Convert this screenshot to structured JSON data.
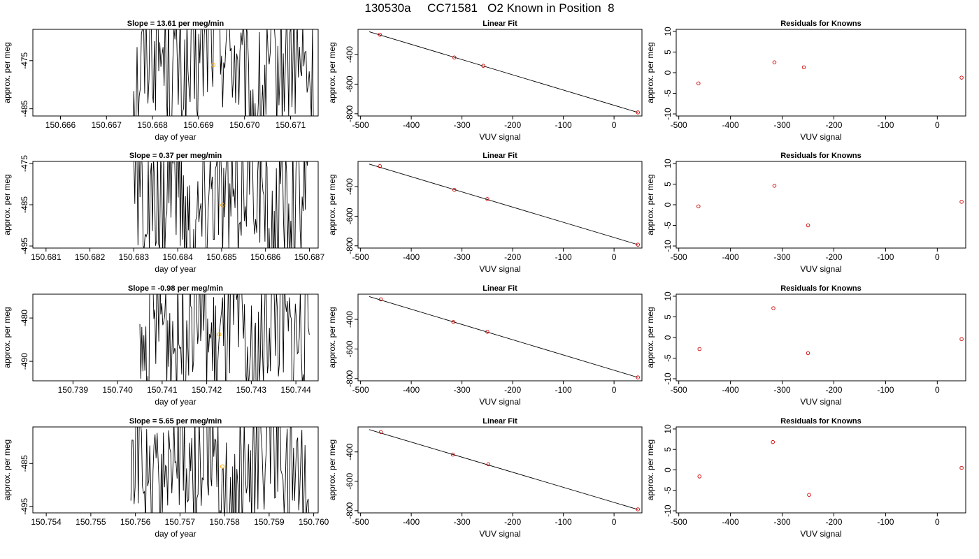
{
  "page_title": "130530a     CC71581   O2 Known in Position  8",
  "colors": {
    "trace": "#000000",
    "highlight": "#ffa500",
    "points": "#d00000",
    "box": "#000000"
  },
  "chart_data": [
    {
      "type": "line",
      "row": 1,
      "panel": "time-series",
      "title": "Slope =  13.61  per meg/min",
      "xlabel": "day of year",
      "ylabel": "approx. per meg",
      "xticks": [
        "150.666",
        "150.667",
        "150.668",
        "150.669",
        "150.670",
        "150.671"
      ],
      "yticks": [
        "-475",
        "-485"
      ],
      "xlim": [
        150.6654,
        150.6716
      ],
      "ylim": [
        -486.5,
        -468.5
      ],
      "trace_start": 150.6675,
      "trace_end": 150.6715,
      "series": [
        {
          "values": [
            -484.0,
            -470.0,
            -476.0,
            -480.0,
            -469.0,
            -472.0,
            -486.0,
            -478.0,
            -474.0,
            -481.0
          ]
        }
      ],
      "highlight": {
        "x": 150.66932,
        "y": -475.9
      }
    },
    {
      "type": "scatter",
      "row": 1,
      "panel": "fit",
      "title": "Linear Fit",
      "xlabel": "VUV signal",
      "ylabel": "approx. per meg",
      "xticks": [
        "-500",
        "-400",
        "-300",
        "-200",
        "-100",
        "0"
      ],
      "yticks": [
        "-400",
        "-600",
        "-800"
      ],
      "xlim": [
        -505,
        55
      ],
      "ylim": [
        -815,
        -230
      ],
      "x": [
        -462,
        -315,
        -258,
        47
      ],
      "y": [
        -266,
        -420,
        -476,
        -791
      ],
      "fit_line": [
        [
          -483,
          -246
        ],
        [
          47,
          -791
        ]
      ]
    },
    {
      "type": "scatter",
      "row": 1,
      "panel": "residuals",
      "title": "Residuals for Knowns",
      "xlabel": "VUV signal",
      "ylabel": "approx. per meg",
      "xticks": [
        "-500",
        "-400",
        "-300",
        "-200",
        "-100",
        "0"
      ],
      "yticks": [
        "10",
        "5",
        "0",
        "-5",
        "-10"
      ],
      "xlim": [
        -505,
        55
      ],
      "ylim": [
        -10.5,
        10.5
      ],
      "x": [
        -462,
        -315,
        -258,
        47
      ],
      "y": [
        -2.6,
        2.5,
        1.3,
        -1.2
      ]
    },
    {
      "type": "line",
      "row": 2,
      "panel": "time-series",
      "title": "Slope =  0.37  per meg/min",
      "xlabel": "day of year",
      "ylabel": "approx. per meg",
      "xticks": [
        "150.681",
        "150.682",
        "150.683",
        "150.684",
        "150.685",
        "150.686",
        "150.687"
      ],
      "yticks": [
        "-475",
        "-485",
        "-495"
      ],
      "xlim": [
        150.6807,
        150.6872
      ],
      "ylim": [
        -495.5,
        -474.5
      ],
      "trace_start": 150.683,
      "trace_end": 150.687,
      "series": [
        {
          "values": [
            -478.0,
            -490.0,
            -476.0,
            -494.0,
            -480.0,
            -487.0,
            -475.0,
            -492.0,
            -483.0,
            -478.0
          ]
        }
      ],
      "highlight": {
        "x": 150.68502,
        "y": -485.1
      }
    },
    {
      "type": "scatter",
      "row": 2,
      "panel": "fit",
      "title": "Linear Fit",
      "xlabel": "VUV signal",
      "ylabel": "approx. per meg",
      "xticks": [
        "-500",
        "-400",
        "-300",
        "-200",
        "-100",
        "0"
      ],
      "yticks": [
        "-400",
        "-600",
        "-800"
      ],
      "xlim": [
        -505,
        55
      ],
      "ylim": [
        -815,
        -230
      ],
      "x": [
        -462,
        -315,
        -250,
        47
      ],
      "y": [
        -262,
        -422,
        -484,
        -792
      ],
      "fit_line": [
        [
          -483,
          -248
        ],
        [
          47,
          -792
        ]
      ]
    },
    {
      "type": "scatter",
      "row": 2,
      "panel": "residuals",
      "title": "Residuals for Knowns",
      "xlabel": "VUV signal",
      "ylabel": "approx. per meg",
      "xticks": [
        "-500",
        "-400",
        "-300",
        "-200",
        "-100",
        "0"
      ],
      "yticks": [
        "10",
        "5",
        "0",
        "-5",
        "-10"
      ],
      "xlim": [
        -505,
        55
      ],
      "ylim": [
        -10.5,
        10.5
      ],
      "x": [
        -462,
        -315,
        -250,
        47
      ],
      "y": [
        -0.4,
        4.6,
        -5.0,
        0.7
      ]
    },
    {
      "type": "line",
      "row": 3,
      "panel": "time-series",
      "title": "Slope =  -0.98  per meg/min",
      "xlabel": "day of year",
      "ylabel": "approx. per meg",
      "xticks": [
        "150.739",
        "150.740",
        "150.741",
        "150.742",
        "150.743",
        "150.744"
      ],
      "yticks": [
        "-480",
        "-490"
      ],
      "xlim": [
        150.7381,
        150.7445
      ],
      "ylim": [
        -494.5,
        -474.5
      ],
      "trace_start": 150.7405,
      "trace_end": 150.7443,
      "series": [
        {
          "values": [
            -492.0,
            -478.0,
            -486.0,
            -475.0,
            -489.0,
            -480.0,
            -493.0,
            -477.0,
            -485.0,
            -482.0
          ]
        }
      ],
      "highlight": {
        "x": 150.74228,
        "y": -483.8
      }
    },
    {
      "type": "scatter",
      "row": 3,
      "panel": "fit",
      "title": "Linear Fit",
      "xlabel": "VUV signal",
      "ylabel": "approx. per meg",
      "xticks": [
        "-500",
        "-400",
        "-300",
        "-200",
        "-100",
        "0"
      ],
      "yticks": [
        "-400",
        "-600",
        "-800"
      ],
      "xlim": [
        -505,
        55
      ],
      "ylim": [
        -815,
        -230
      ],
      "x": [
        -460,
        -317,
        -250,
        47
      ],
      "y": [
        -265,
        -418,
        -484,
        -792
      ],
      "fit_line": [
        [
          -483,
          -246
        ],
        [
          47,
          -792
        ]
      ]
    },
    {
      "type": "scatter",
      "row": 3,
      "panel": "residuals",
      "title": "Residuals for Knowns",
      "xlabel": "VUV signal",
      "ylabel": "approx. per meg",
      "xticks": [
        "-500",
        "-400",
        "-300",
        "-200",
        "-100",
        "0"
      ],
      "yticks": [
        "10",
        "5",
        "0",
        "-5",
        "-10"
      ],
      "xlim": [
        -505,
        55
      ],
      "ylim": [
        -10.5,
        10.5
      ],
      "x": [
        -460,
        -317,
        -250,
        47
      ],
      "y": [
        -2.8,
        7.1,
        -3.8,
        -0.4
      ]
    },
    {
      "type": "line",
      "row": 4,
      "panel": "time-series",
      "title": "Slope =  5.65  per meg/min",
      "xlabel": "day of year",
      "ylabel": "approx. per meg",
      "xticks": [
        "150.754",
        "150.755",
        "150.756",
        "150.757",
        "150.758",
        "150.759",
        "150.760"
      ],
      "yticks": [
        "-485",
        "-495"
      ],
      "xlim": [
        150.7537,
        150.7601
      ],
      "ylim": [
        -496.5,
        -476.5
      ],
      "trace_start": 150.7559,
      "trace_end": 150.7599,
      "series": [
        {
          "values": [
            -479.0,
            -494.0,
            -481.0,
            -490.0,
            -477.0,
            -495.0,
            -484.0,
            -479.0,
            -492.0,
            -486.0
          ]
        }
      ],
      "highlight": {
        "x": 150.75795,
        "y": -485.7
      }
    },
    {
      "type": "scatter",
      "row": 4,
      "panel": "fit",
      "title": "Linear Fit",
      "xlabel": "VUV signal",
      "ylabel": "approx. per meg",
      "xticks": [
        "-500",
        "-400",
        "-300",
        "-200",
        "-100",
        "0"
      ],
      "yticks": [
        "-400",
        "-600",
        "-800"
      ],
      "xlim": [
        -505,
        55
      ],
      "ylim": [
        -815,
        -230
      ],
      "x": [
        -460,
        -318,
        -248,
        47
      ],
      "y": [
        -265,
        -418,
        -484,
        -791
      ],
      "fit_line": [
        [
          -483,
          -248
        ],
        [
          47,
          -792
        ]
      ]
    },
    {
      "type": "scatter",
      "row": 4,
      "panel": "residuals",
      "title": "Residuals for Knowns",
      "xlabel": "VUV signal",
      "ylabel": "approx. per meg",
      "xticks": [
        "-500",
        "-400",
        "-300",
        "-200",
        "-100",
        "0"
      ],
      "yticks": [
        "10",
        "5",
        "0",
        "-5",
        "-10"
      ],
      "xlim": [
        -505,
        55
      ],
      "ylim": [
        -10.5,
        10.5
      ],
      "x": [
        -460,
        -318,
        -248,
        47
      ],
      "y": [
        -1.6,
        6.8,
        -6.1,
        0.5
      ]
    }
  ]
}
